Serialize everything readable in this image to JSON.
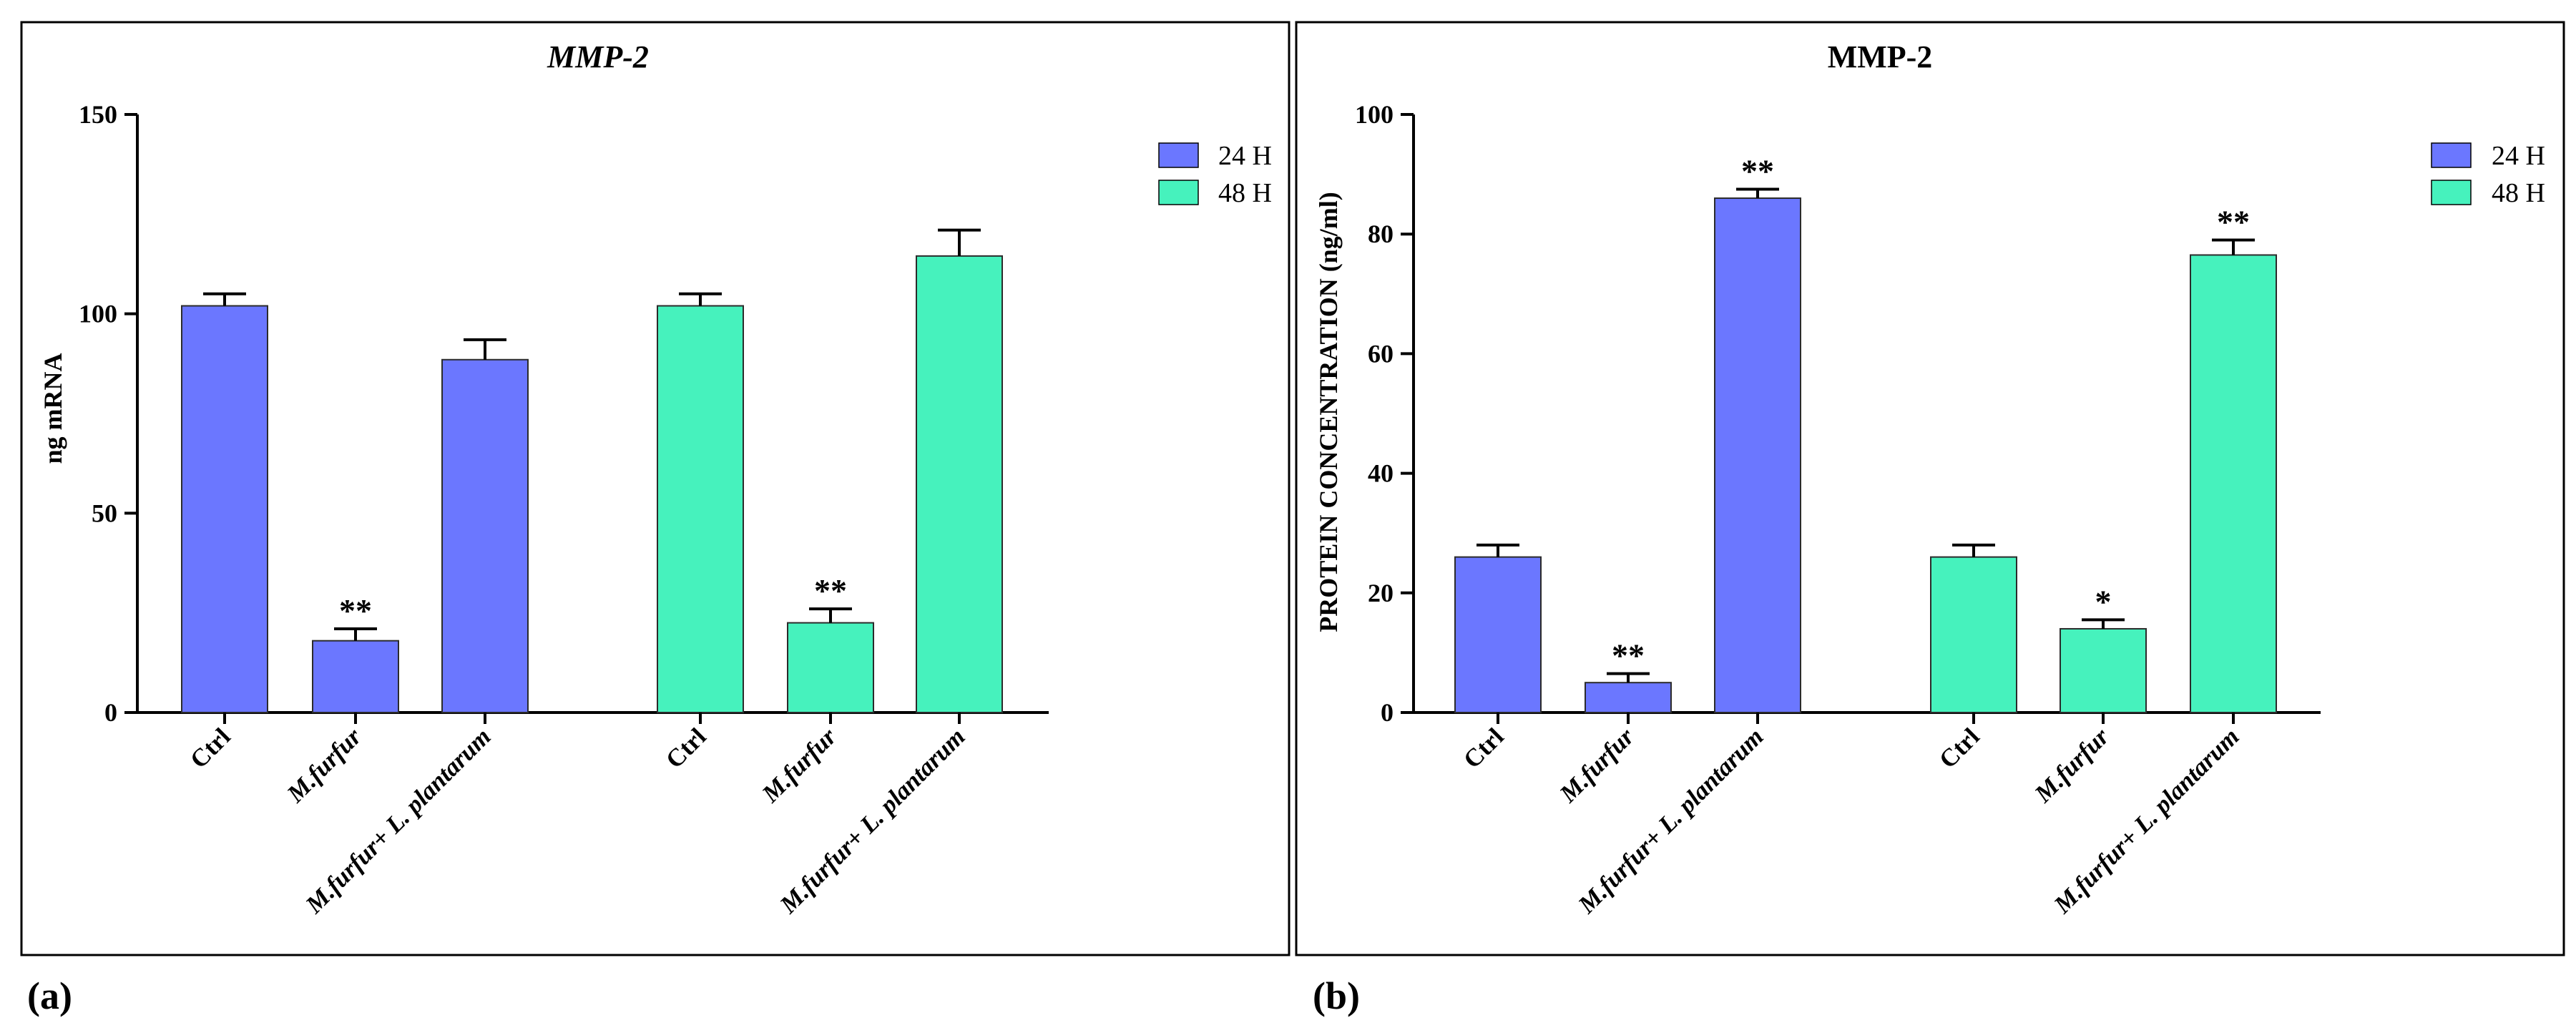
{
  "colors": {
    "h24": "#6b77ff",
    "h48": "#46f2bd",
    "axis": "#000000"
  },
  "panel_labels": [
    "(a)",
    "(b)"
  ],
  "chart_data": [
    {
      "type": "bar",
      "title": "MMP-2",
      "title_italic": true,
      "xlabel": "",
      "ylabel": "ng mRNA",
      "ylim": [
        0,
        150
      ],
      "yticks": [
        0,
        50,
        100,
        150
      ],
      "legend": {
        "position": "top-right",
        "entries": [
          "24 H",
          "48 H"
        ]
      },
      "groups": [
        {
          "name": "24 H",
          "bars": [
            {
              "label": "Ctrl",
              "value": 102,
              "err": 3,
              "sig": ""
            },
            {
              "label": "M.furfur",
              "value": 18,
              "err": 3,
              "sig": "**"
            },
            {
              "label": "M.furfur+ L. plantarum",
              "value": 88.5,
              "err": 5,
              "sig": ""
            }
          ]
        },
        {
          "name": "48 H",
          "bars": [
            {
              "label": "Ctrl",
              "value": 102,
              "err": 3,
              "sig": ""
            },
            {
              "label": "M.furfur",
              "value": 22.5,
              "err": 3.5,
              "sig": "**"
            },
            {
              "label": "M.furfur+ L. plantarum",
              "value": 114.5,
              "err": 6.5,
              "sig": ""
            }
          ]
        }
      ]
    },
    {
      "type": "bar",
      "title": "MMP-2",
      "title_italic": false,
      "xlabel": "",
      "ylabel": "PROTEIN CONCENTRATION (ng/ml)",
      "ylim": [
        0,
        100
      ],
      "yticks": [
        0,
        20,
        40,
        60,
        80,
        100
      ],
      "legend": {
        "position": "top-right",
        "entries": [
          "24 H",
          "48 H"
        ]
      },
      "groups": [
        {
          "name": "24 H",
          "bars": [
            {
              "label": "Ctrl",
              "value": 26,
              "err": 2,
              "sig": ""
            },
            {
              "label": "M.furfur",
              "value": 5,
              "err": 1.5,
              "sig": "**"
            },
            {
              "label": "M.furfur+ L. plantarum",
              "value": 86,
              "err": 1.5,
              "sig": "**"
            }
          ]
        },
        {
          "name": "48 H",
          "bars": [
            {
              "label": "Ctrl",
              "value": 26,
              "err": 2,
              "sig": ""
            },
            {
              "label": "M.furfur",
              "value": 14,
              "err": 1.5,
              "sig": "*"
            },
            {
              "label": "M.furfur+ L. plantarum",
              "value": 76.5,
              "err": 2.5,
              "sig": "**"
            }
          ]
        }
      ]
    }
  ]
}
